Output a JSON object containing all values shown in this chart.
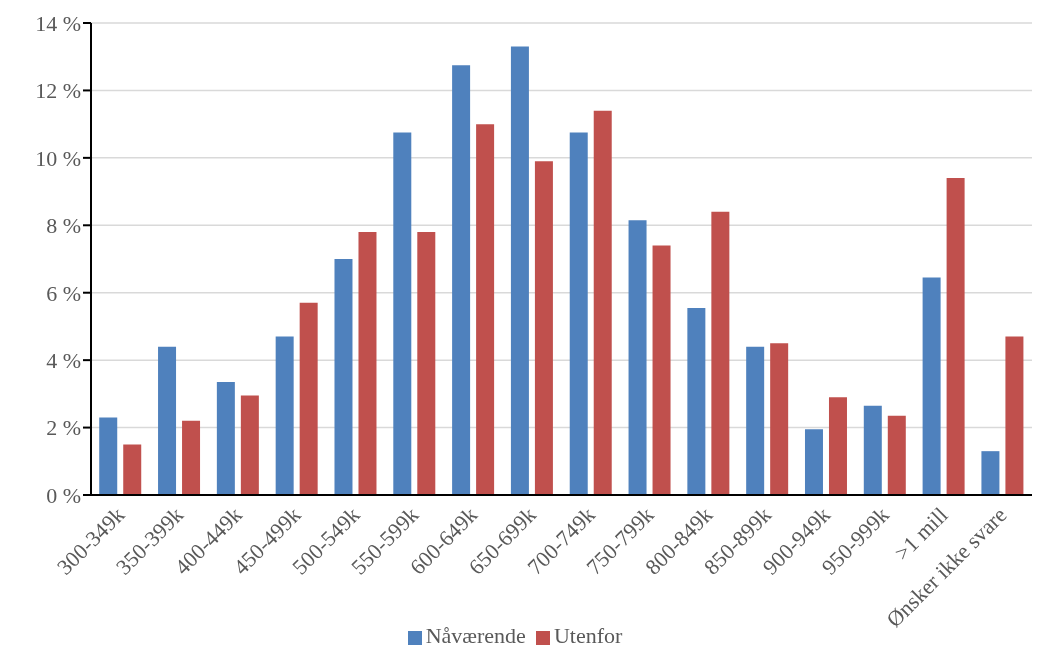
{
  "chart_data": {
    "type": "bar",
    "categories": [
      "300-349k",
      "350-399k",
      "400-449k",
      "450-499k",
      "500-549k",
      "550-599k",
      "600-649k",
      "650-699k",
      "700-749k",
      "750-799k",
      "800-849k",
      "850-899k",
      "900-949k",
      "950-999k",
      ">1 mill",
      "Ønsker ikke svare"
    ],
    "series": [
      {
        "name": "Nåværende",
        "color": "#4f81bd",
        "values": [
          2.3,
          4.4,
          3.35,
          4.7,
          7.0,
          10.75,
          12.75,
          13.3,
          10.75,
          8.15,
          5.55,
          4.4,
          1.95,
          2.65,
          6.45,
          1.3
        ]
      },
      {
        "name": "Utenfor",
        "color": "#c0504d",
        "values": [
          1.5,
          2.2,
          2.95,
          5.7,
          7.8,
          7.8,
          11.0,
          9.9,
          11.4,
          7.4,
          8.4,
          4.5,
          2.9,
          2.35,
          9.4,
          4.7
        ]
      }
    ],
    "ylim": [
      0,
      14
    ],
    "yticks": [
      {
        "value": 0,
        "label": "0 %"
      },
      {
        "value": 2,
        "label": "2 %"
      },
      {
        "value": 4,
        "label": "4 %"
      },
      {
        "value": 6,
        "label": "6 %"
      },
      {
        "value": 8,
        "label": "8 %"
      },
      {
        "value": 10,
        "label": "10 %"
      },
      {
        "value": 12,
        "label": "12 %"
      },
      {
        "value": 14,
        "label": "14 %"
      }
    ],
    "grid": "y",
    "legend": "bottom"
  }
}
